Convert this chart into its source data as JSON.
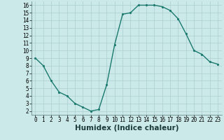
{
  "xlabel": "Humidex (Indice chaleur)",
  "x_values": [
    0,
    1,
    2,
    3,
    4,
    5,
    6,
    7,
    8,
    9,
    10,
    11,
    12,
    13,
    14,
    15,
    16,
    17,
    18,
    19,
    20,
    21,
    22,
    23
  ],
  "y_values": [
    9.0,
    8.0,
    6.0,
    4.5,
    4.0,
    3.0,
    2.5,
    2.0,
    2.2,
    5.5,
    10.8,
    14.8,
    15.0,
    16.0,
    16.0,
    16.0,
    15.8,
    15.3,
    14.2,
    12.2,
    10.0,
    9.5,
    8.5,
    8.2
  ],
  "line_color": "#1a7a6e",
  "marker_size": 2.5,
  "bg_color": "#cce9e9",
  "grid_color": "#aacfcf",
  "xlim": [
    -0.5,
    23.5
  ],
  "ylim": [
    1.5,
    16.5
  ],
  "yticks": [
    2,
    3,
    4,
    5,
    6,
    7,
    8,
    9,
    10,
    11,
    12,
    13,
    14,
    15,
    16
  ],
  "xticks": [
    0,
    1,
    2,
    3,
    4,
    5,
    6,
    7,
    8,
    9,
    10,
    11,
    12,
    13,
    14,
    15,
    16,
    17,
    18,
    19,
    20,
    21,
    22,
    23
  ],
  "xlabel_fontsize": 7.5,
  "tick_fontsize": 5.5,
  "line_width": 1.0
}
